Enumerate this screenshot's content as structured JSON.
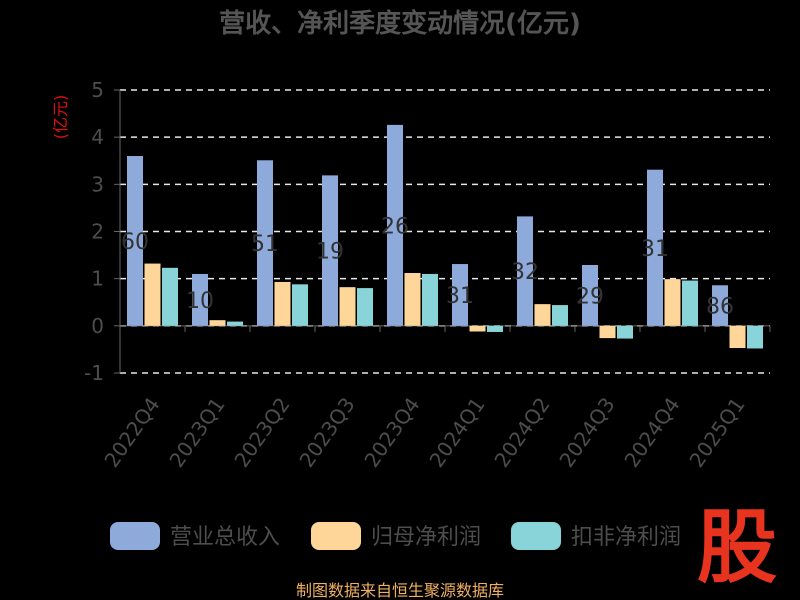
{
  "chart_data": {
    "type": "bar",
    "title": "营收、净利季度变动情况(亿元)",
    "ylabel": "(亿元)",
    "ylim": [
      -1,
      5
    ],
    "yticks": [
      -1,
      0,
      1,
      2,
      3,
      4,
      5
    ],
    "grid": true,
    "legend_position": "bottom",
    "categories": [
      "2022Q4",
      "2023Q1",
      "2023Q2",
      "2023Q3",
      "2023Q4",
      "2024Q1",
      "2024Q2",
      "2024Q3",
      "2024Q4",
      "2025Q1"
    ],
    "series": [
      {
        "name": "营业总收入",
        "color": "#8eaadb",
        "values": [
          3.6,
          1.1,
          3.51,
          3.19,
          4.26,
          1.31,
          2.32,
          1.29,
          3.31,
          0.86
        ]
      },
      {
        "name": "归母净利润",
        "color": "#ffd699",
        "values": [
          1.32,
          0.12,
          0.93,
          0.82,
          1.12,
          -0.12,
          0.46,
          -0.26,
          0.99,
          -0.47
        ]
      },
      {
        "name": "扣非净利润",
        "color": "#88d4d8",
        "values": [
          1.23,
          0.09,
          0.88,
          0.8,
          1.1,
          -0.13,
          0.44,
          -0.27,
          0.96,
          -0.48
        ]
      }
    ],
    "data_labels": [
      "60",
      "10",
      "51",
      "19",
      "26",
      "31",
      "32",
      "29",
      "31",
      "86"
    ]
  },
  "footer": {
    "source": "制图数据来自恒生聚源数据库"
  },
  "logo": {
    "glyph": "股"
  }
}
